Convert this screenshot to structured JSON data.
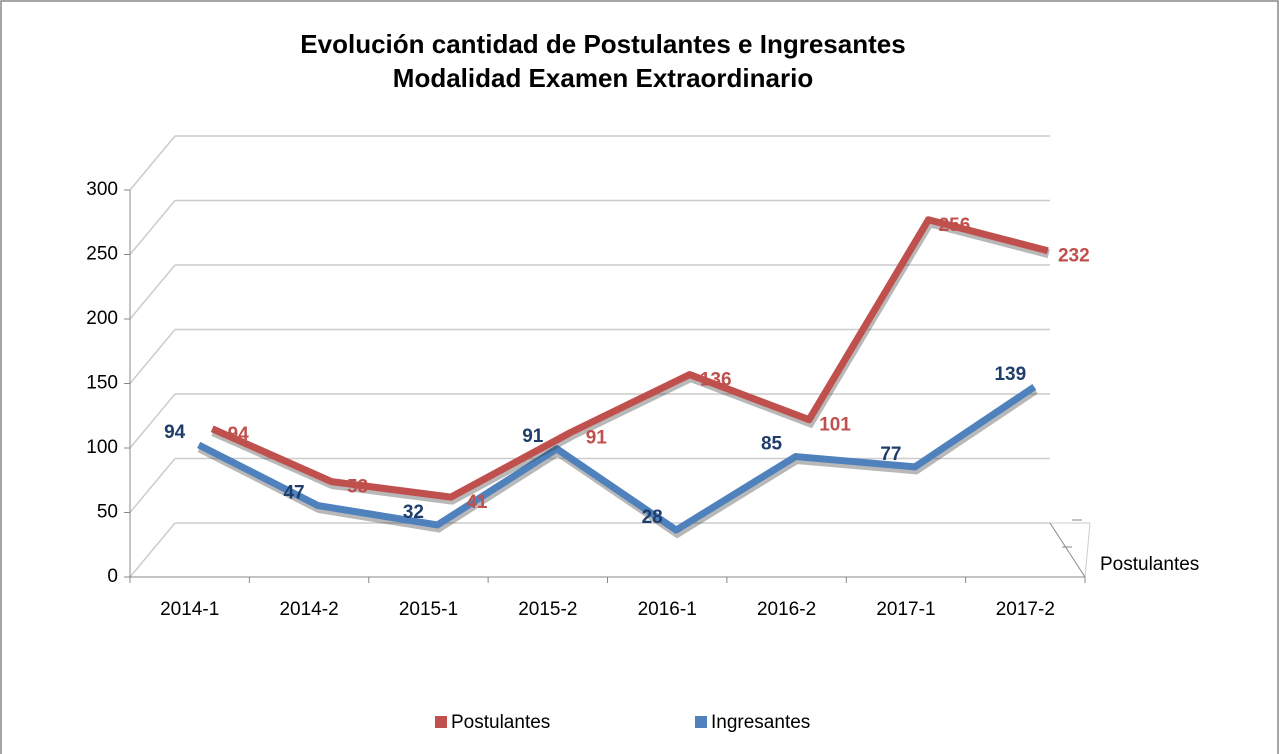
{
  "chart_data": {
    "type": "line3d",
    "title": [
      "Evolución cantidad de Postulantes e Ingresantes",
      "Modalidad Examen Extraordinario"
    ],
    "categories": [
      "2014-1",
      "2014-2",
      "2015-1",
      "2015-2",
      "2016-1",
      "2016-2",
      "2017-1",
      "2017-2"
    ],
    "series": [
      {
        "name": "Postulantes",
        "color": "#c0504d",
        "label_color": "#c0504d",
        "values": [
          94,
          53,
          41,
          91,
          136,
          101,
          256,
          232
        ]
      },
      {
        "name": "Ingresantes",
        "color": "#4f81bd",
        "label_color": "#1f3d6b",
        "values": [
          94,
          47,
          32,
          91,
          28,
          85,
          77,
          139
        ]
      }
    ],
    "depth_axis_label": "Postulantes",
    "ylim": [
      0,
      300
    ],
    "yticks": [
      0,
      50,
      100,
      150,
      200,
      250,
      300
    ],
    "grid": true,
    "legend": "bottom"
  }
}
